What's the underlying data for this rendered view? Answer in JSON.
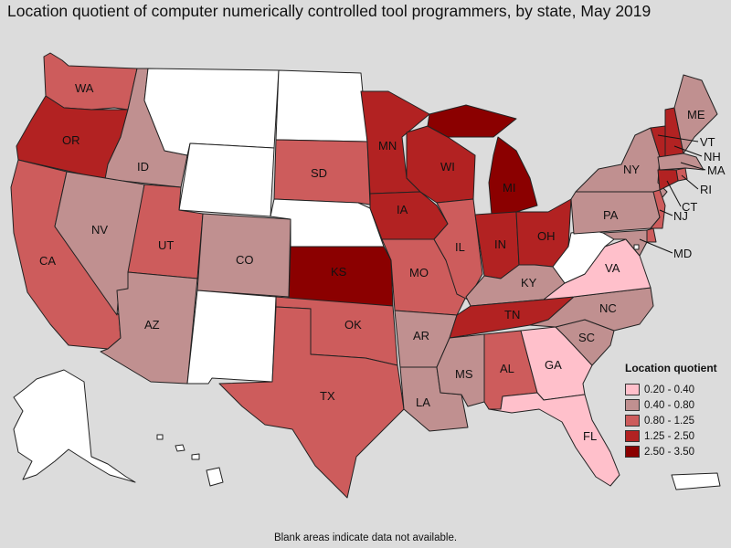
{
  "title": "Location quotient of computer numerically controlled tool programmers, by state, May 2019",
  "footnote": "Blank areas indicate data not available.",
  "colors": {
    "na": "#ffffff",
    "c1": "#ffc0cb",
    "c2": "#c09090",
    "c3": "#cd5c5c",
    "c4": "#b22222",
    "c5": "#8b0000"
  },
  "legend": {
    "title": "Location quotient",
    "items": [
      {
        "label": "0.20 - 0.40",
        "cls": "c1"
      },
      {
        "label": "0.40 - 0.80",
        "cls": "c2"
      },
      {
        "label": "0.80 - 1.25",
        "cls": "c3"
      },
      {
        "label": "1.25 - 2.50",
        "cls": "c4"
      },
      {
        "label": "2.50 - 3.50",
        "cls": "c5"
      }
    ]
  },
  "states": {
    "WA": {
      "cls": "c3",
      "label": "WA"
    },
    "OR": {
      "cls": "c4",
      "label": "OR"
    },
    "CA": {
      "cls": "c3",
      "label": "CA"
    },
    "ID": {
      "cls": "c2",
      "label": "ID"
    },
    "NV": {
      "cls": "c2",
      "label": "NV"
    },
    "MT": {
      "cls": "na",
      "label": ""
    },
    "WY": {
      "cls": "na",
      "label": ""
    },
    "UT": {
      "cls": "c3",
      "label": "UT"
    },
    "AZ": {
      "cls": "c2",
      "label": "AZ"
    },
    "CO": {
      "cls": "c2",
      "label": "CO"
    },
    "NM": {
      "cls": "na",
      "label": ""
    },
    "ND": {
      "cls": "na",
      "label": ""
    },
    "SD": {
      "cls": "c3",
      "label": "SD"
    },
    "NE": {
      "cls": "na",
      "label": ""
    },
    "KS": {
      "cls": "c5",
      "label": "KS"
    },
    "OK": {
      "cls": "c3",
      "label": "OK"
    },
    "TX": {
      "cls": "c3",
      "label": "TX"
    },
    "MN": {
      "cls": "c4",
      "label": "MN"
    },
    "IA": {
      "cls": "c4",
      "label": "IA"
    },
    "MO": {
      "cls": "c3",
      "label": "MO"
    },
    "AR": {
      "cls": "c2",
      "label": "AR"
    },
    "LA": {
      "cls": "c2",
      "label": "LA"
    },
    "WI": {
      "cls": "c4",
      "label": "WI"
    },
    "IL": {
      "cls": "c3",
      "label": "IL"
    },
    "MI": {
      "cls": "c5",
      "label": "MI"
    },
    "IN": {
      "cls": "c4",
      "label": "IN"
    },
    "OH": {
      "cls": "c4",
      "label": "OH"
    },
    "KY": {
      "cls": "c2",
      "label": "KY"
    },
    "TN": {
      "cls": "c4",
      "label": "TN"
    },
    "MS": {
      "cls": "c2",
      "label": "MS"
    },
    "AL": {
      "cls": "c3",
      "label": "AL"
    },
    "GA": {
      "cls": "c1",
      "label": "GA"
    },
    "FL": {
      "cls": "c1",
      "label": "FL"
    },
    "SC": {
      "cls": "c2",
      "label": "SC"
    },
    "NC": {
      "cls": "c2",
      "label": "NC"
    },
    "VA": {
      "cls": "c1",
      "label": "VA"
    },
    "WV": {
      "cls": "na",
      "label": ""
    },
    "PA": {
      "cls": "c2",
      "label": "PA"
    },
    "NY": {
      "cls": "c2",
      "label": "NY"
    },
    "VT": {
      "cls": "c4",
      "label": "VT"
    },
    "NH": {
      "cls": "c4",
      "label": "NH"
    },
    "ME": {
      "cls": "c2",
      "label": "ME"
    },
    "MA": {
      "cls": "c2",
      "label": "MA"
    },
    "RI": {
      "cls": "c3",
      "label": "RI"
    },
    "CT": {
      "cls": "c4",
      "label": "CT"
    },
    "NJ": {
      "cls": "c3",
      "label": "NJ"
    },
    "DE": {
      "cls": "c3",
      "label": ""
    },
    "MD": {
      "cls": "c2",
      "label": "MD"
    },
    "DC": {
      "cls": "na",
      "label": ""
    },
    "AK": {
      "cls": "na",
      "label": ""
    },
    "HI": {
      "cls": "na",
      "label": ""
    },
    "PR": {
      "cls": "na",
      "label": ""
    }
  }
}
